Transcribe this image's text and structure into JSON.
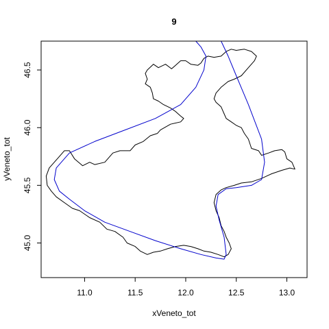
{
  "chart_data": {
    "type": "line",
    "title": "9",
    "xlabel": "xVeneto_tot",
    "ylabel": "yVeneto_tot",
    "xlim": [
      10.57,
      13.2
    ],
    "ylim": [
      44.7,
      46.75
    ],
    "x_ticks": [
      "11.0",
      "11.5",
      "12.0",
      "12.5",
      "13.0"
    ],
    "y_ticks": [
      "45.0",
      "45.5",
      "46.0",
      "46.5"
    ],
    "grid": false,
    "colors": {
      "boundary": "#000000",
      "curve": "#0000cc"
    },
    "series": [
      {
        "kind": "boundary",
        "points": [
          [
            12.5,
            46.67
          ],
          [
            12.45,
            46.68
          ],
          [
            12.4,
            46.66
          ],
          [
            12.35,
            46.62
          ],
          [
            12.28,
            46.61
          ],
          [
            12.22,
            46.62
          ],
          [
            12.18,
            46.6
          ],
          [
            12.15,
            46.56
          ],
          [
            12.12,
            46.54
          ],
          [
            12.05,
            46.55
          ],
          [
            12.0,
            46.58
          ],
          [
            11.95,
            46.58
          ],
          [
            11.9,
            46.54
          ],
          [
            11.86,
            46.51
          ],
          [
            11.8,
            46.55
          ],
          [
            11.73,
            46.52
          ],
          [
            11.68,
            46.55
          ],
          [
            11.62,
            46.5
          ],
          [
            11.6,
            46.47
          ],
          [
            11.62,
            46.42
          ],
          [
            11.6,
            46.38
          ],
          [
            11.65,
            46.35
          ],
          [
            11.67,
            46.3
          ],
          [
            11.68,
            46.25
          ],
          [
            11.73,
            46.23
          ],
          [
            11.78,
            46.2
          ],
          [
            11.85,
            46.17
          ],
          [
            11.9,
            46.14
          ],
          [
            11.95,
            46.1
          ],
          [
            11.98,
            46.08
          ],
          [
            11.95,
            46.05
          ],
          [
            11.85,
            46.03
          ],
          [
            11.75,
            45.98
          ],
          [
            11.72,
            45.95
          ],
          [
            11.65,
            45.93
          ],
          [
            11.58,
            45.88
          ],
          [
            11.5,
            45.85
          ],
          [
            11.45,
            45.8
          ],
          [
            11.35,
            45.8
          ],
          [
            11.28,
            45.78
          ],
          [
            11.2,
            45.7
          ],
          [
            11.1,
            45.68
          ],
          [
            11.05,
            45.7
          ],
          [
            10.98,
            45.67
          ],
          [
            10.9,
            45.73
          ],
          [
            10.85,
            45.8
          ],
          [
            10.8,
            45.8
          ],
          [
            10.75,
            45.75
          ],
          [
            10.7,
            45.7
          ],
          [
            10.65,
            45.65
          ],
          [
            10.62,
            45.58
          ],
          [
            10.63,
            45.5
          ],
          [
            10.67,
            45.45
          ],
          [
            10.72,
            45.4
          ],
          [
            10.8,
            45.35
          ],
          [
            10.88,
            45.3
          ],
          [
            10.95,
            45.28
          ],
          [
            11.05,
            45.22
          ],
          [
            11.15,
            45.18
          ],
          [
            11.22,
            45.12
          ],
          [
            11.3,
            45.1
          ],
          [
            11.38,
            45.05
          ],
          [
            11.42,
            45.0
          ],
          [
            11.5,
            44.97
          ],
          [
            11.55,
            44.93
          ],
          [
            11.62,
            44.9
          ],
          [
            11.68,
            44.92
          ],
          [
            11.75,
            44.93
          ],
          [
            11.82,
            44.95
          ],
          [
            11.9,
            44.97
          ],
          [
            11.98,
            44.98
          ],
          [
            12.05,
            44.97
          ],
          [
            12.12,
            44.95
          ],
          [
            12.18,
            44.93
          ],
          [
            12.25,
            44.92
          ],
          [
            12.32,
            44.9
          ],
          [
            12.38,
            44.88
          ],
          [
            12.42,
            44.9
          ],
          [
            12.45,
            44.95
          ],
          [
            12.43,
            45.0
          ],
          [
            12.4,
            45.05
          ],
          [
            12.38,
            45.1
          ],
          [
            12.35,
            45.15
          ],
          [
            12.33,
            45.22
          ],
          [
            12.3,
            45.28
          ],
          [
            12.28,
            45.35
          ],
          [
            12.3,
            45.42
          ],
          [
            12.35,
            45.46
          ],
          [
            12.4,
            45.48
          ],
          [
            12.48,
            45.5
          ],
          [
            12.55,
            45.52
          ],
          [
            12.65,
            45.53
          ],
          [
            12.75,
            45.56
          ],
          [
            12.85,
            45.6
          ],
          [
            12.95,
            45.63
          ],
          [
            13.03,
            45.65
          ],
          [
            13.08,
            45.64
          ],
          [
            13.05,
            45.7
          ],
          [
            13.0,
            45.73
          ],
          [
            12.98,
            45.79
          ],
          [
            12.95,
            45.81
          ],
          [
            12.88,
            45.8
          ],
          [
            12.82,
            45.78
          ],
          [
            12.75,
            45.76
          ],
          [
            12.72,
            45.8
          ],
          [
            12.65,
            45.82
          ],
          [
            12.62,
            45.9
          ],
          [
            12.58,
            45.95
          ],
          [
            12.55,
            46.0
          ],
          [
            12.5,
            46.02
          ],
          [
            12.45,
            46.05
          ],
          [
            12.4,
            46.08
          ],
          [
            12.38,
            46.12
          ],
          [
            12.35,
            46.18
          ],
          [
            12.3,
            46.22
          ],
          [
            12.28,
            46.25
          ],
          [
            12.3,
            46.3
          ],
          [
            12.35,
            46.35
          ],
          [
            12.42,
            46.4
          ],
          [
            12.48,
            46.42
          ],
          [
            12.55,
            46.45
          ],
          [
            12.62,
            46.52
          ],
          [
            12.68,
            46.58
          ],
          [
            12.7,
            46.62
          ],
          [
            12.65,
            46.66
          ],
          [
            12.58,
            46.68
          ],
          [
            12.5,
            46.67
          ]
        ]
      },
      {
        "kind": "curve",
        "points": [
          [
            12.1,
            46.75
          ],
          [
            12.15,
            46.7
          ],
          [
            12.2,
            46.62
          ],
          [
            12.18,
            46.5
          ],
          [
            12.1,
            46.35
          ],
          [
            11.95,
            46.2
          ],
          [
            11.7,
            46.08
          ],
          [
            11.4,
            45.98
          ],
          [
            11.1,
            45.88
          ],
          [
            10.85,
            45.78
          ],
          [
            10.72,
            45.65
          ],
          [
            10.7,
            45.55
          ],
          [
            10.75,
            45.45
          ],
          [
            10.85,
            45.38
          ],
          [
            11.0,
            45.28
          ],
          [
            11.2,
            45.18
          ],
          [
            11.45,
            45.1
          ],
          [
            11.7,
            45.02
          ],
          [
            11.95,
            44.95
          ],
          [
            12.15,
            44.9
          ],
          [
            12.3,
            44.87
          ],
          [
            12.38,
            44.86
          ],
          [
            12.4,
            44.9
          ],
          [
            12.38,
            45.05
          ],
          [
            12.33,
            45.2
          ],
          [
            12.3,
            45.32
          ],
          [
            12.32,
            45.42
          ],
          [
            12.4,
            45.47
          ],
          [
            12.5,
            45.48
          ],
          [
            12.65,
            45.5
          ],
          [
            12.75,
            45.55
          ],
          [
            12.78,
            45.7
          ],
          [
            12.75,
            45.9
          ],
          [
            12.62,
            46.2
          ],
          [
            12.5,
            46.45
          ],
          [
            12.42,
            46.62
          ],
          [
            12.35,
            46.75
          ]
        ]
      }
    ]
  }
}
